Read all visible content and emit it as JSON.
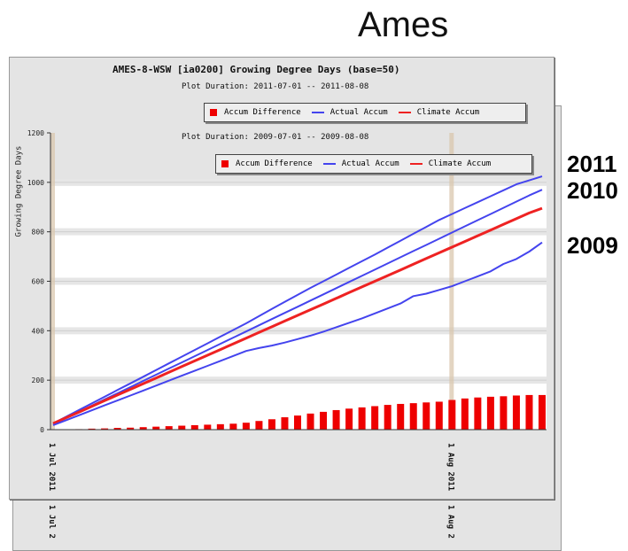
{
  "big_title": "Ames",
  "year_labels": [
    "2011",
    "2010",
    "2009"
  ],
  "chart_front": {
    "title": "AMES-8-WSW [ia0200] Growing Degree Days (base=50)",
    "duration": "Plot Duration: 2011-07-01 -- 2011-08-08"
  },
  "chart_back": {
    "duration": "Plot Duration: 2009-07-01 -- 2009-08-08"
  },
  "legend": {
    "diff": "Accum Difference",
    "actual": "Actual Accum",
    "climate": "Climate Accum"
  },
  "colors": {
    "actual": "#4444ee",
    "climate": "#ee2222",
    "diff": "#ee0000"
  },
  "chart_data": {
    "type": "line",
    "title": "AMES-8-WSW [ia0200] Growing Degree Days (base=50)",
    "ylabel": "Growing Degree Days",
    "ylim": [
      0,
      1200
    ],
    "yticks": [
      0,
      200,
      400,
      600,
      800,
      1000,
      1200
    ],
    "x": [
      "07-01",
      "07-02",
      "07-03",
      "07-04",
      "07-05",
      "07-06",
      "07-07",
      "07-08",
      "07-09",
      "07-10",
      "07-11",
      "07-12",
      "07-13",
      "07-14",
      "07-15",
      "07-16",
      "07-17",
      "07-18",
      "07-19",
      "07-20",
      "07-21",
      "07-22",
      "07-23",
      "07-24",
      "07-25",
      "07-26",
      "07-27",
      "07-28",
      "07-29",
      "07-30",
      "07-31",
      "08-01",
      "08-02",
      "08-03",
      "08-04",
      "08-05",
      "08-06",
      "08-07",
      "08-08"
    ],
    "xtick_labels": [
      "1 Jul 2011",
      "1 Aug 2011",
      "1 Jul 2",
      "1 Aug 2"
    ],
    "series": [
      {
        "name": "Actual Accum",
        "label": "2011",
        "color": "#4444ee",
        "values": [
          25,
          52,
          79,
          106,
          133,
          160,
          187,
          214,
          241,
          268,
          295,
          322,
          349,
          376,
          403,
          430,
          459,
          488,
          517,
          545,
          573,
          600,
          627,
          654,
          681,
          708,
          736,
          764,
          792,
          820,
          848,
          872,
          896,
          920,
          944,
          968,
          992,
          1008,
          1024
        ]
      },
      {
        "name": "Actual Accum",
        "label": "2010",
        "color": "#4444ee",
        "values": [
          22,
          47,
          72,
          97,
          122,
          147,
          172,
          197,
          222,
          247,
          272,
          297,
          322,
          347,
          372,
          397,
          422,
          447,
          472,
          497,
          522,
          547,
          572,
          597,
          622,
          647,
          672,
          697,
          722,
          747,
          772,
          797,
          822,
          847,
          872,
          897,
          922,
          947,
          970
        ]
      },
      {
        "name": "Climate Accum",
        "color": "#ee2222",
        "values": [
          25,
          48,
          71,
          94,
          117,
          140,
          163,
          186,
          209,
          232,
          255,
          278,
          301,
          324,
          347,
          370,
          393,
          416,
          439,
          462,
          485,
          508,
          531,
          554,
          577,
          600,
          623,
          646,
          669,
          692,
          715,
          738,
          761,
          784,
          807,
          830,
          853,
          876,
          895
        ]
      },
      {
        "name": "Actual Accum",
        "label": "2009",
        "color": "#4444ee",
        "values": [
          18,
          38,
          58,
          78,
          98,
          118,
          138,
          158,
          178,
          198,
          218,
          238,
          258,
          278,
          298,
          318,
          330,
          340,
          352,
          366,
          380,
          396,
          414,
          432,
          450,
          470,
          490,
          510,
          540,
          550,
          565,
          580,
          600,
          620,
          640,
          670,
          690,
          720,
          757
        ]
      },
      {
        "name": "Accum Difference",
        "color": "#ee0000",
        "type": "bar",
        "values": [
          0,
          1,
          2,
          4,
          5,
          7,
          8,
          10,
          12,
          14,
          16,
          18,
          20,
          22,
          24,
          28,
          35,
          42,
          50,
          57,
          65,
          72,
          79,
          85,
          90,
          95,
          100,
          104,
          107,
          110,
          113,
          120,
          126,
          130,
          133,
          135,
          138,
          140,
          140
        ]
      }
    ]
  }
}
